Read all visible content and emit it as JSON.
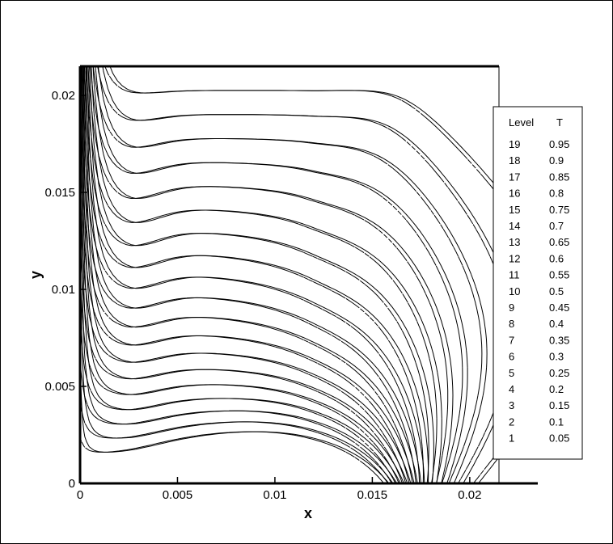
{
  "chart_data": {
    "type": "contour",
    "xlabel": "x",
    "ylabel": "y",
    "xlim": [
      0,
      0.0215
    ],
    "ylim": [
      0,
      0.0215
    ],
    "x_ticks": [
      {
        "value": 0,
        "label": "0"
      },
      {
        "value": 0.005,
        "label": "0.005"
      },
      {
        "value": 0.01,
        "label": "0.01"
      },
      {
        "value": 0.015,
        "label": "0.015"
      },
      {
        "value": 0.02,
        "label": "0.02"
      }
    ],
    "y_ticks": [
      {
        "value": 0,
        "label": "0"
      },
      {
        "value": 0.005,
        "label": "0.005"
      },
      {
        "value": 0.01,
        "label": "0.01"
      },
      {
        "value": 0.015,
        "label": "0.015"
      },
      {
        "value": 0.02,
        "label": "0.02"
      }
    ],
    "legend": {
      "header_level": "Level",
      "header_value": "T",
      "placement": "right",
      "entries": [
        {
          "level": "19",
          "value": "0.95"
        },
        {
          "level": "18",
          "value": "0.9"
        },
        {
          "level": "17",
          "value": "0.85"
        },
        {
          "level": "16",
          "value": "0.8"
        },
        {
          "level": "15",
          "value": "0.75"
        },
        {
          "level": "14",
          "value": "0.7"
        },
        {
          "level": "13",
          "value": "0.65"
        },
        {
          "level": "12",
          "value": "0.6"
        },
        {
          "level": "11",
          "value": "0.55"
        },
        {
          "level": "10",
          "value": "0.5"
        },
        {
          "level": "9",
          "value": "0.45"
        },
        {
          "level": "8",
          "value": "0.4"
        },
        {
          "level": "7",
          "value": "0.35"
        },
        {
          "level": "6",
          "value": "0.3"
        },
        {
          "level": "5",
          "value": "0.25"
        },
        {
          "level": "4",
          "value": "0.2"
        },
        {
          "level": "3",
          "value": "0.15"
        },
        {
          "level": "2",
          "value": "0.1"
        },
        {
          "level": "1",
          "value": "0.05"
        }
      ]
    },
    "series": [
      {
        "style": "solid"
      },
      {
        "style": "dashed"
      }
    ],
    "grid": false
  }
}
